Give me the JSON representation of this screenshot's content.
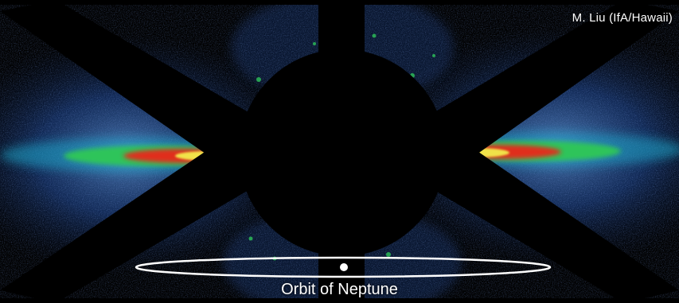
{
  "image": {
    "subject": "debris-disk",
    "credit": "M. Liu (IfA/Hawaii)",
    "caption": "Orbit of Neptune",
    "colors": {
      "background": "#000000",
      "halo_blue": "#1e3f86",
      "disk_cyan": "#1aa6c9",
      "disk_green": "#2ec45a",
      "disk_yellow": "#f1e24a",
      "disk_red": "#e02d1a",
      "disk_core": "#fff6c9",
      "orbit_ellipse": "#ffffff"
    }
  }
}
